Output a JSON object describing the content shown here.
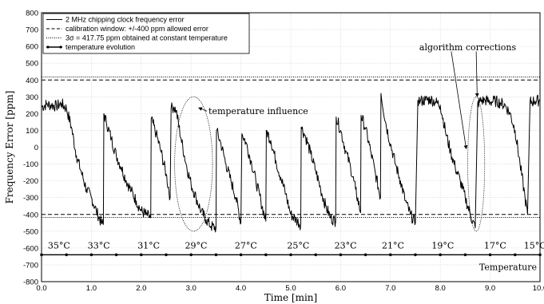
{
  "chart_data": {
    "type": "line",
    "xlabel": "Time [min]",
    "ylabel": "Frequency Error [ppm]",
    "xlim": [
      0,
      10
    ],
    "ylim": [
      -800,
      800
    ],
    "xticks": [
      "0.0",
      "1.0",
      "2.0",
      "3.0",
      "4.0",
      "5.0",
      "6.0",
      "7.0",
      "8.0",
      "9.0",
      "10.0"
    ],
    "yticks": [
      "-800",
      "-700",
      "-600",
      "-500",
      "-400",
      "-300",
      "-200",
      "-100",
      "0",
      "100",
      "200",
      "300",
      "400",
      "500",
      "600",
      "700",
      "800"
    ],
    "grid": true,
    "legend_position": "top-left",
    "legend": [
      {
        "label": "2 MHz chipping clock frequency error",
        "style": "solid"
      },
      {
        "label": "calibration window: +/-400 ppm allowed error",
        "style": "dashed"
      },
      {
        "label": "3σ = 417.75 ppm obtained at constant temperature",
        "style": "dotted"
      },
      {
        "label": "temperature evolution",
        "style": "solid-marker"
      }
    ],
    "reference_lines": [
      {
        "y": 400,
        "style": "dashed"
      },
      {
        "y": -400,
        "style": "dashed"
      },
      {
        "y": 417.75,
        "style": "dotted"
      },
      {
        "y": -417.75,
        "style": "dotted"
      }
    ],
    "series": [
      {
        "name": "2 MHz chipping clock frequency error",
        "x": [
          0.0,
          0.1,
          0.2,
          0.3,
          0.4,
          0.5,
          0.6,
          0.7,
          0.8,
          0.9,
          1.0,
          1.1,
          1.2,
          1.24,
          1.25,
          1.3,
          1.4,
          1.5,
          1.6,
          1.7,
          1.8,
          1.9,
          2.0,
          2.1,
          2.19,
          2.2,
          2.3,
          2.4,
          2.5,
          2.58,
          2.6,
          2.65,
          2.7,
          2.8,
          2.9,
          3.0,
          3.1,
          3.2,
          3.3,
          3.4,
          3.5,
          3.51,
          3.6,
          3.7,
          3.8,
          3.9,
          4.0,
          4.02,
          4.1,
          4.2,
          4.3,
          4.4,
          4.5,
          4.51,
          4.6,
          4.7,
          4.8,
          4.9,
          5.0,
          5.1,
          5.2,
          5.21,
          5.3,
          5.4,
          5.5,
          5.6,
          5.7,
          5.8,
          5.9,
          5.91,
          6.0,
          6.1,
          6.2,
          6.3,
          6.4,
          6.41,
          6.5,
          6.6,
          6.7,
          6.8,
          6.81,
          6.9,
          7.0,
          7.1,
          7.2,
          7.3,
          7.4,
          7.5,
          7.55,
          7.6,
          7.7,
          7.8,
          7.9,
          8.0,
          8.1,
          8.2,
          8.3,
          8.4,
          8.5,
          8.6,
          8.7,
          8.75,
          8.8,
          8.9,
          9.0,
          9.1,
          9.2,
          9.3,
          9.4,
          9.5,
          9.6,
          9.7,
          9.75,
          9.8,
          9.9,
          10.0
        ],
        "y": [
          240,
          255,
          250,
          245,
          260,
          230,
          120,
          -50,
          -150,
          -250,
          -300,
          -380,
          -450,
          -460,
          200,
          150,
          50,
          -50,
          -120,
          -200,
          -260,
          -320,
          -380,
          -400,
          -420,
          170,
          80,
          -30,
          -160,
          -300,
          230,
          240,
          220,
          50,
          -100,
          -220,
          -300,
          -380,
          -430,
          -470,
          -480,
          100,
          20,
          -100,
          -200,
          -300,
          -450,
          80,
          30,
          -80,
          -200,
          -320,
          -440,
          100,
          40,
          -80,
          -180,
          -280,
          -400,
          -430,
          -460,
          120,
          60,
          -40,
          -140,
          -250,
          -350,
          -420,
          -440,
          180,
          100,
          -20,
          -120,
          -250,
          -390,
          190,
          110,
          -20,
          -160,
          -300,
          320,
          150,
          20,
          -100,
          -200,
          -320,
          -400,
          -450,
          280,
          275,
          280,
          285,
          270,
          250,
          100,
          -20,
          -120,
          -200,
          -300,
          -400,
          -480,
          260,
          275,
          280,
          270,
          275,
          265,
          250,
          200,
          100,
          -100,
          -300,
          -400,
          270,
          275,
          280
        ]
      },
      {
        "name": "temperature evolution",
        "labels": [
          "35°C",
          "33°C",
          "31°C",
          "29°C",
          "27°C",
          "25°C",
          "23°C",
          "21°C",
          "19°C",
          "17°C",
          "15°C"
        ],
        "x": [
          0.35,
          1.15,
          2.15,
          3.1,
          4.1,
          5.15,
          6.1,
          7.05,
          8.05,
          9.1,
          9.9
        ],
        "y": -640,
        "marker_x": [
          0.0,
          0.5,
          1.0,
          1.5,
          2.0,
          2.5,
          3.0,
          3.5,
          4.0,
          4.5,
          5.0,
          5.5,
          6.0,
          6.5,
          7.0,
          7.5,
          8.0,
          8.5,
          9.0,
          9.5,
          10.0
        ]
      }
    ],
    "temperature_label": "Temperature",
    "annotations": [
      {
        "text": "temperature influence",
        "x": 3.35,
        "y": 215
      },
      {
        "text": "algorithm corrections",
        "x": 8.55,
        "y": 595
      }
    ],
    "ellipses": [
      {
        "cx": 3.05,
        "cy": -100,
        "rx": 0.38,
        "ry": 400
      },
      {
        "cx": 8.72,
        "cy": -100,
        "rx": 0.17,
        "ry": 400
      }
    ]
  }
}
